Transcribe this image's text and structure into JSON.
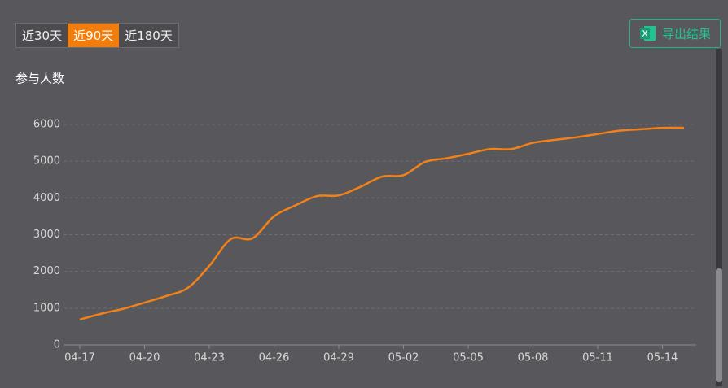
{
  "tabs": [
    "近30天",
    "近90天",
    "近180天"
  ],
  "export_button": "导出结果",
  "chart_data": {
    "type": "line",
    "y_axis_label": "参与人数",
    "categories": [
      "04-17",
      null,
      null,
      "04-20",
      null,
      null,
      "04-23",
      null,
      null,
      "04-26",
      null,
      null,
      "04-29",
      null,
      null,
      "05-02",
      null,
      null,
      "05-05",
      null,
      null,
      "05-08",
      null,
      null,
      "05-11",
      null,
      null,
      "05-14",
      null
    ],
    "series": [
      {
        "name": "参与人数",
        "color": "#f28217",
        "values": [
          690,
          850,
          980,
          1150,
          1330,
          1550,
          2150,
          2880,
          2900,
          3500,
          3800,
          4050,
          4070,
          4300,
          4580,
          4620,
          4980,
          5080,
          5200,
          5330,
          5330,
          5500,
          5580,
          5650,
          5740,
          5830,
          5870,
          5910,
          5910
        ]
      }
    ],
    "ylim": [
      0,
      6000
    ],
    "yticks": [
      0,
      1000,
      2000,
      3000,
      4000,
      5000,
      6000
    ],
    "grid": true
  }
}
